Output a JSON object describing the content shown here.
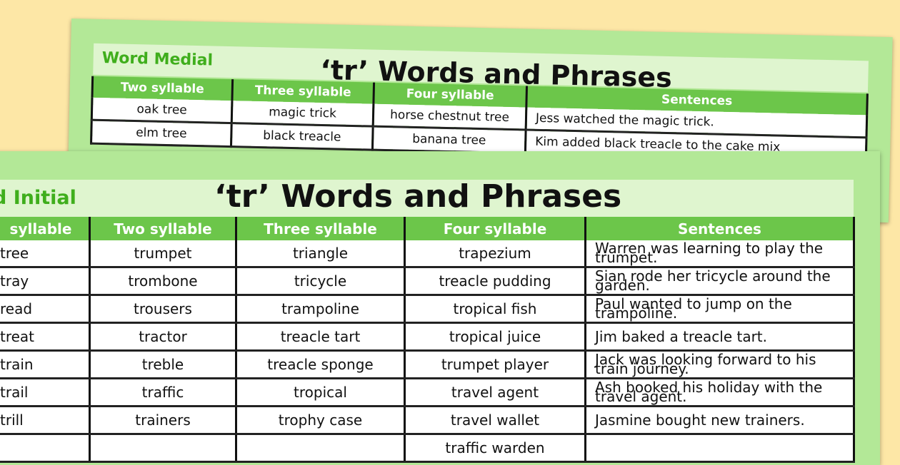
{
  "colors": {
    "background": "#fde7a6",
    "sheet": "#b3e897",
    "panel": "#dff5cf",
    "header": "#6cc64a",
    "label": "#3fae1c"
  },
  "back": {
    "label": "Word Medial",
    "title": "‘tr’ Words and Phrases",
    "headers": [
      "Two syllable",
      "Three syllable",
      "Four syllable",
      "Sentences"
    ],
    "rows": [
      [
        "oak tree",
        "magic trick",
        "horse chestnut tree",
        "Jess watched the magic trick."
      ],
      [
        "elm tree",
        "black treacle",
        "banana tree",
        "Kim added black treacle to the cake mix"
      ]
    ]
  },
  "front": {
    "label": "d Initial",
    "title": "‘tr’ Words and Phrases",
    "headers": [
      "syllable",
      "Two syllable",
      "Three syllable",
      "Four syllable",
      "Sentences"
    ],
    "rows": [
      [
        "tree",
        "trumpet",
        "triangle",
        "trapezium",
        "Warren was learning to play the trumpet."
      ],
      [
        "tray",
        "trombone",
        "tricycle",
        "treacle pudding",
        "Sian rode her tricycle around the garden."
      ],
      [
        "read",
        "trousers",
        "trampoline",
        "tropical fish",
        "Paul wanted to jump on the trampoline."
      ],
      [
        "treat",
        "tractor",
        "treacle tart",
        "tropical juice",
        "Jim baked a treacle tart."
      ],
      [
        "train",
        "treble",
        "treacle sponge",
        "trumpet player",
        "Jack was looking forward to his train journey."
      ],
      [
        "trail",
        "traffic",
        "tropical",
        "travel agent",
        "Ash booked his holiday with the travel agent."
      ],
      [
        "trill",
        "trainers",
        "trophy case",
        "travel wallet",
        "Jasmine bought new trainers."
      ],
      [
        "",
        "",
        "",
        "traffic warden",
        ""
      ]
    ]
  }
}
